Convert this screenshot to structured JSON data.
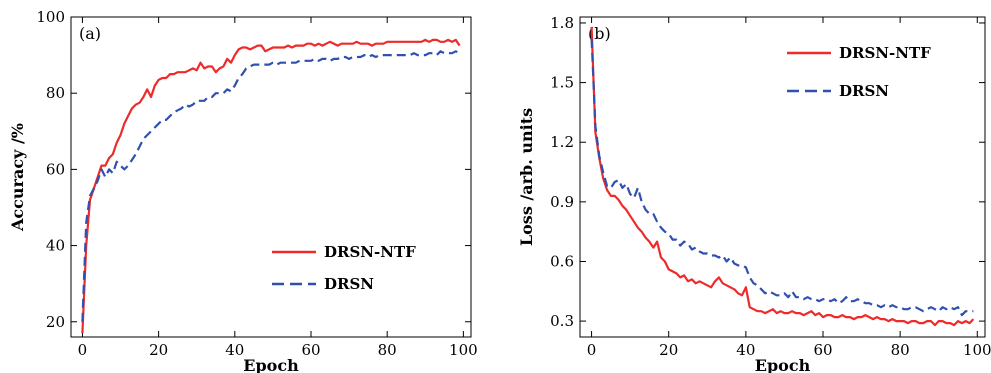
{
  "chart_data": [
    {
      "type": "line",
      "panel_label": "(a)",
      "xlabel": "Epoch",
      "ylabel": "Accuracy /%",
      "xlim": [
        -3,
        102
      ],
      "ylim": [
        16,
        100
      ],
      "xticks": [
        0,
        20,
        40,
        60,
        80,
        100
      ],
      "yticks": [
        20,
        40,
        60,
        80,
        100
      ],
      "legend_position": "bottom-right",
      "series": [
        {
          "name": "DRSN-NTF",
          "color": "#ee2a2a",
          "dash": "solid",
          "x": [
            0,
            1,
            2,
            3,
            4,
            5,
            6,
            7,
            8,
            9,
            10,
            11,
            12,
            13,
            14,
            15,
            16,
            17,
            18,
            19,
            20,
            21,
            22,
            23,
            24,
            25,
            26,
            27,
            28,
            29,
            30,
            31,
            32,
            33,
            34,
            35,
            36,
            37,
            38,
            39,
            40,
            41,
            42,
            43,
            44,
            45,
            46,
            47,
            48,
            49,
            50,
            51,
            52,
            53,
            54,
            55,
            56,
            57,
            58,
            59,
            60,
            61,
            62,
            63,
            64,
            65,
            66,
            67,
            68,
            69,
            70,
            71,
            72,
            73,
            74,
            75,
            76,
            77,
            78,
            79,
            80,
            81,
            82,
            83,
            84,
            85,
            86,
            87,
            88,
            89,
            90,
            91,
            92,
            93,
            94,
            95,
            96,
            97,
            98,
            99
          ],
          "y": [
            17,
            40,
            52,
            55,
            58,
            61,
            61,
            63,
            64,
            67,
            69,
            72,
            74,
            76,
            77,
            77.5,
            79,
            81,
            79,
            82,
            83.5,
            84,
            84,
            85,
            85,
            85.5,
            85.5,
            85.5,
            86,
            86.5,
            86,
            88,
            86.5,
            87,
            87,
            85.5,
            86.5,
            87,
            89,
            88,
            90,
            91.5,
            92,
            92,
            91.5,
            92,
            92.5,
            92.5,
            91,
            91.5,
            92,
            92,
            92,
            92,
            92.5,
            92,
            92.5,
            92.5,
            92.5,
            93,
            93,
            92.5,
            93,
            92.5,
            93,
            93.5,
            93,
            92.5,
            93,
            93,
            93,
            93,
            93.5,
            93,
            93,
            93,
            92.5,
            93,
            93,
            93,
            93.5,
            93.5,
            93.5,
            93.5,
            93.5,
            93.5,
            93.5,
            93.5,
            93.5,
            93.5,
            94,
            93.5,
            94,
            94,
            93.5,
            93.5,
            94,
            93.5,
            94,
            92.5
          ]
        },
        {
          "name": "DRSN",
          "color": "#3050b0",
          "dash": "dashed",
          "x": [
            0,
            1,
            2,
            3,
            4,
            5,
            6,
            7,
            8,
            9,
            10,
            11,
            12,
            13,
            14,
            15,
            16,
            17,
            18,
            19,
            20,
            21,
            22,
            23,
            24,
            25,
            26,
            27,
            28,
            29,
            30,
            31,
            32,
            33,
            34,
            35,
            36,
            37,
            38,
            39,
            40,
            41,
            42,
            43,
            44,
            45,
            46,
            47,
            48,
            49,
            50,
            51,
            52,
            53,
            54,
            55,
            56,
            57,
            58,
            59,
            60,
            61,
            62,
            63,
            64,
            65,
            66,
            67,
            68,
            69,
            70,
            71,
            72,
            73,
            74,
            75,
            76,
            77,
            78,
            79,
            80,
            81,
            82,
            83,
            84,
            85,
            86,
            87,
            88,
            89,
            90,
            91,
            92,
            93,
            94,
            95,
            96,
            97,
            98,
            99
          ],
          "y": [
            20,
            46,
            53,
            55,
            57,
            60,
            58,
            60,
            59,
            62,
            61,
            60,
            61,
            62.5,
            64,
            66,
            68,
            69,
            70,
            71,
            72,
            73,
            73,
            74,
            75,
            75.5,
            76,
            77,
            76.5,
            77,
            78,
            78,
            78,
            79,
            79,
            80,
            80,
            80,
            81,
            80.5,
            82,
            84,
            85,
            86.5,
            87,
            87.5,
            87.5,
            87.5,
            87.5,
            87.5,
            88,
            87.5,
            88,
            88,
            88,
            88,
            88,
            88.5,
            88.5,
            88.5,
            88.5,
            89,
            88.5,
            89,
            89,
            88.5,
            89,
            89,
            89.5,
            89.5,
            89,
            89.5,
            89.5,
            89.5,
            90,
            89.5,
            90,
            89.5,
            90,
            90,
            90,
            90,
            90,
            90,
            90,
            90,
            90,
            90.5,
            90,
            90,
            90,
            90.5,
            90.5,
            90,
            91,
            90.5,
            90.5,
            90.5,
            91,
            90.5
          ]
        }
      ]
    },
    {
      "type": "line",
      "panel_label": "(b)",
      "xlabel": "Epoch",
      "ylabel": "Loss /arb. units",
      "xlim": [
        -3,
        102
      ],
      "ylim": [
        0.22,
        1.83
      ],
      "xticks": [
        0,
        20,
        40,
        60,
        80,
        100
      ],
      "yticks": [
        0.3,
        0.6,
        0.9,
        1.2,
        1.5,
        1.8
      ],
      "ytick_labels": [
        "0.3",
        "0.6",
        "0.9",
        "1.2",
        "1.5",
        "1.8"
      ],
      "legend_position": "top-right",
      "series": [
        {
          "name": "DRSN-NTF",
          "color": "#ee2a2a",
          "dash": "solid",
          "x": [
            0,
            1,
            2,
            3,
            4,
            5,
            6,
            7,
            8,
            9,
            10,
            11,
            12,
            13,
            14,
            15,
            16,
            17,
            18,
            19,
            20,
            21,
            22,
            23,
            24,
            25,
            26,
            27,
            28,
            29,
            30,
            31,
            32,
            33,
            34,
            35,
            36,
            37,
            38,
            39,
            40,
            41,
            42,
            43,
            44,
            45,
            46,
            47,
            48,
            49,
            50,
            51,
            52,
            53,
            54,
            55,
            56,
            57,
            58,
            59,
            60,
            61,
            62,
            63,
            64,
            65,
            66,
            67,
            68,
            69,
            70,
            71,
            72,
            73,
            74,
            75,
            76,
            77,
            78,
            79,
            80,
            81,
            82,
            83,
            84,
            85,
            86,
            87,
            88,
            89,
            90,
            91,
            92,
            93,
            94,
            95,
            96,
            97,
            98,
            99
          ],
          "y": [
            1.78,
            1.25,
            1.12,
            1.02,
            0.96,
            0.93,
            0.93,
            0.91,
            0.88,
            0.86,
            0.83,
            0.8,
            0.77,
            0.75,
            0.72,
            0.7,
            0.67,
            0.7,
            0.62,
            0.6,
            0.56,
            0.55,
            0.54,
            0.52,
            0.53,
            0.5,
            0.51,
            0.49,
            0.5,
            0.49,
            0.48,
            0.47,
            0.5,
            0.52,
            0.49,
            0.48,
            0.47,
            0.46,
            0.44,
            0.43,
            0.47,
            0.37,
            0.36,
            0.35,
            0.35,
            0.34,
            0.35,
            0.36,
            0.34,
            0.35,
            0.34,
            0.34,
            0.35,
            0.34,
            0.34,
            0.33,
            0.34,
            0.35,
            0.33,
            0.34,
            0.32,
            0.33,
            0.33,
            0.32,
            0.32,
            0.33,
            0.32,
            0.32,
            0.31,
            0.32,
            0.32,
            0.33,
            0.32,
            0.31,
            0.32,
            0.31,
            0.31,
            0.3,
            0.31,
            0.3,
            0.3,
            0.3,
            0.29,
            0.3,
            0.3,
            0.29,
            0.29,
            0.3,
            0.3,
            0.28,
            0.3,
            0.3,
            0.29,
            0.29,
            0.28,
            0.3,
            0.29,
            0.3,
            0.29,
            0.31
          ]
        },
        {
          "name": "DRSN",
          "color": "#3050b0",
          "dash": "dashed",
          "x": [
            0,
            1,
            2,
            3,
            4,
            5,
            6,
            7,
            8,
            9,
            10,
            11,
            12,
            13,
            14,
            15,
            16,
            17,
            18,
            19,
            20,
            21,
            22,
            23,
            24,
            25,
            26,
            27,
            28,
            29,
            30,
            31,
            32,
            33,
            34,
            35,
            36,
            37,
            38,
            39,
            40,
            41,
            42,
            43,
            44,
            45,
            46,
            47,
            48,
            49,
            50,
            51,
            52,
            53,
            54,
            55,
            56,
            57,
            58,
            59,
            60,
            61,
            62,
            63,
            64,
            65,
            66,
            67,
            68,
            69,
            70,
            71,
            72,
            73,
            74,
            75,
            76,
            77,
            78,
            79,
            80,
            81,
            82,
            83,
            84,
            85,
            86,
            87,
            88,
            89,
            90,
            91,
            92,
            93,
            94,
            95,
            96,
            97,
            98,
            99
          ],
          "y": [
            1.72,
            1.28,
            1.13,
            1.05,
            0.98,
            0.97,
            1.0,
            1.01,
            0.97,
            0.99,
            0.94,
            0.92,
            0.97,
            0.9,
            0.86,
            0.84,
            0.84,
            0.8,
            0.77,
            0.75,
            0.74,
            0.71,
            0.71,
            0.68,
            0.7,
            0.69,
            0.66,
            0.67,
            0.65,
            0.64,
            0.64,
            0.63,
            0.63,
            0.62,
            0.63,
            0.6,
            0.62,
            0.59,
            0.58,
            0.58,
            0.57,
            0.52,
            0.49,
            0.48,
            0.46,
            0.44,
            0.45,
            0.44,
            0.43,
            0.43,
            0.44,
            0.42,
            0.45,
            0.42,
            0.42,
            0.41,
            0.42,
            0.41,
            0.41,
            0.4,
            0.41,
            0.41,
            0.4,
            0.41,
            0.39,
            0.4,
            0.42,
            0.4,
            0.4,
            0.41,
            0.4,
            0.39,
            0.39,
            0.38,
            0.38,
            0.37,
            0.38,
            0.37,
            0.38,
            0.37,
            0.37,
            0.36,
            0.36,
            0.37,
            0.37,
            0.36,
            0.35,
            0.36,
            0.37,
            0.36,
            0.35,
            0.37,
            0.36,
            0.37,
            0.36,
            0.37,
            0.33,
            0.35,
            0.35,
            0.35
          ]
        }
      ]
    }
  ]
}
